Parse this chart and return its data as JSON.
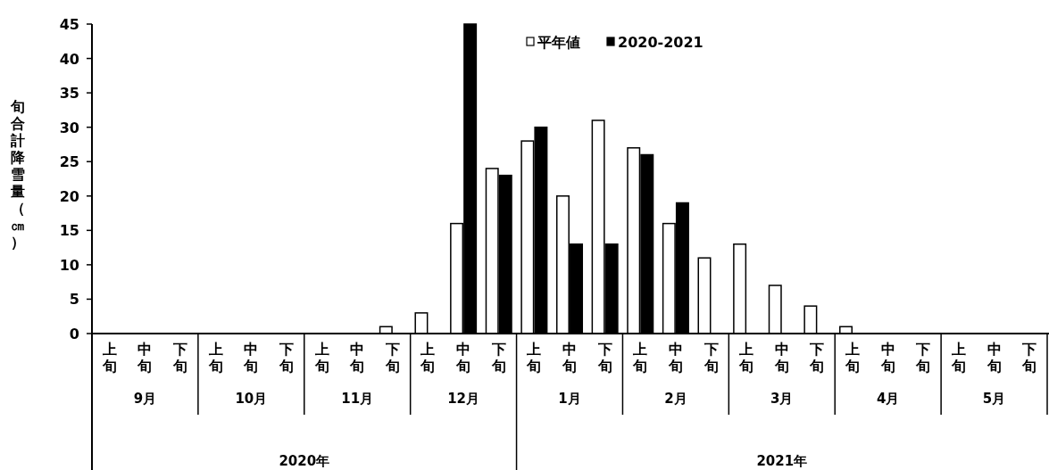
{
  "chart_data": {
    "type": "bar",
    "ylabel": "旬合計降雪量（㎝）",
    "categories": [
      "上旬",
      "中旬",
      "下旬",
      "上旬",
      "中旬",
      "下旬",
      "上旬",
      "中旬",
      "下旬",
      "上旬",
      "中旬",
      "下旬",
      "上旬",
      "中旬",
      "下旬",
      "上旬",
      "中旬",
      "下旬",
      "上旬",
      "中旬",
      "下旬",
      "上旬",
      "中旬",
      "下旬",
      "上旬",
      "中旬",
      "下旬"
    ],
    "series": [
      {
        "name": "平年値",
        "color": "#ffffff",
        "values": [
          0,
          0,
          0,
          0,
          0,
          0,
          0,
          0,
          1,
          3,
          16,
          24,
          28,
          20,
          31,
          27,
          16,
          11,
          13,
          7,
          4,
          1,
          0,
          0,
          0,
          0,
          0
        ]
      },
      {
        "name": "2020-2021",
        "color": "#000000",
        "values": [
          0,
          0,
          0,
          0,
          0,
          0,
          0,
          0,
          0,
          0,
          45,
          23,
          30,
          13,
          13,
          26,
          19,
          null,
          null,
          null,
          null,
          null,
          null,
          null,
          null,
          null,
          null
        ]
      }
    ],
    "annotations": [
      "9月",
      "10月",
      "11月",
      "12月",
      "1月",
      "2月",
      "3月",
      "4月",
      "5月",
      "2020年",
      "2021年"
    ],
    "ylim": [
      0,
      45
    ],
    "yticks": [
      0,
      5,
      10,
      15,
      20,
      25,
      30,
      35,
      40,
      45
    ],
    "grid": false,
    "legend": "top"
  }
}
